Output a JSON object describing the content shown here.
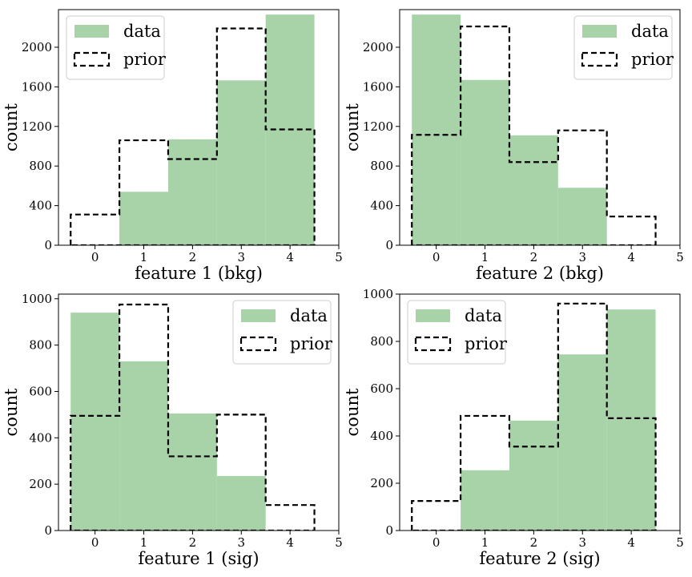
{
  "chart_data": [
    {
      "type": "bar",
      "xlabel": "feature 1 (bkg)",
      "ylabel": "count",
      "x": [
        0,
        1,
        2,
        3,
        4
      ],
      "xlim": [
        -0.75,
        5
      ],
      "ylim": [
        0,
        2380
      ],
      "xticks": [
        "0",
        "1",
        "2",
        "3",
        "4",
        "5"
      ],
      "yticks": [
        "0",
        "400",
        "800",
        "1200",
        "1600",
        "2000"
      ],
      "legend_position": "top-left",
      "series": [
        {
          "name": "data",
          "style": "filled",
          "values": [
            0,
            540,
            1070,
            1665,
            2330
          ]
        },
        {
          "name": "prior",
          "style": "dashed-step",
          "values": [
            310,
            1060,
            870,
            2190,
            1170
          ]
        }
      ]
    },
    {
      "type": "bar",
      "xlabel": "feature 2 (bkg)",
      "ylabel": "count",
      "x": [
        0,
        1,
        2,
        3,
        4
      ],
      "xlim": [
        -0.75,
        5
      ],
      "ylim": [
        0,
        2380
      ],
      "xticks": [
        "0",
        "1",
        "2",
        "3",
        "4",
        "5"
      ],
      "yticks": [
        "0",
        "400",
        "800",
        "1200",
        "1600",
        "2000"
      ],
      "legend_position": "top-right",
      "series": [
        {
          "name": "data",
          "style": "filled",
          "values": [
            2330,
            1670,
            1110,
            580,
            0
          ]
        },
        {
          "name": "prior",
          "style": "dashed-step",
          "values": [
            1115,
            2210,
            840,
            1160,
            290
          ]
        }
      ]
    },
    {
      "type": "bar",
      "xlabel": "feature 1 (sig)",
      "ylabel": "count",
      "x": [
        0,
        1,
        2,
        3,
        4
      ],
      "xlim": [
        -0.75,
        5
      ],
      "ylim": [
        0,
        1020
      ],
      "xticks": [
        "0",
        "1",
        "2",
        "3",
        "4",
        "5"
      ],
      "yticks": [
        "0",
        "200",
        "400",
        "600",
        "800",
        "1000"
      ],
      "legend_position": "top-right",
      "series": [
        {
          "name": "data",
          "style": "filled",
          "values": [
            940,
            730,
            505,
            235,
            0
          ]
        },
        {
          "name": "prior",
          "style": "dashed-step",
          "values": [
            495,
            975,
            320,
            500,
            110
          ]
        }
      ]
    },
    {
      "type": "bar",
      "xlabel": "feature 2 (sig)",
      "ylabel": "count",
      "x": [
        0,
        1,
        2,
        3,
        4
      ],
      "xlim": [
        -0.75,
        5
      ],
      "ylim": [
        0,
        1000
      ],
      "xticks": [
        "0",
        "1",
        "2",
        "3",
        "4",
        "5"
      ],
      "yticks": [
        "0",
        "200",
        "400",
        "600",
        "800",
        "1000"
      ],
      "legend_position": "top-left",
      "series": [
        {
          "name": "data",
          "style": "filled",
          "values": [
            0,
            255,
            465,
            745,
            935
          ]
        },
        {
          "name": "prior",
          "style": "dashed-step",
          "values": [
            125,
            485,
            355,
            960,
            475
          ]
        }
      ]
    }
  ],
  "colors": {
    "data_fill": "#a8d2a8",
    "prior_line": "#000000",
    "axes": "#000000",
    "legend_border": "#cccccc"
  }
}
